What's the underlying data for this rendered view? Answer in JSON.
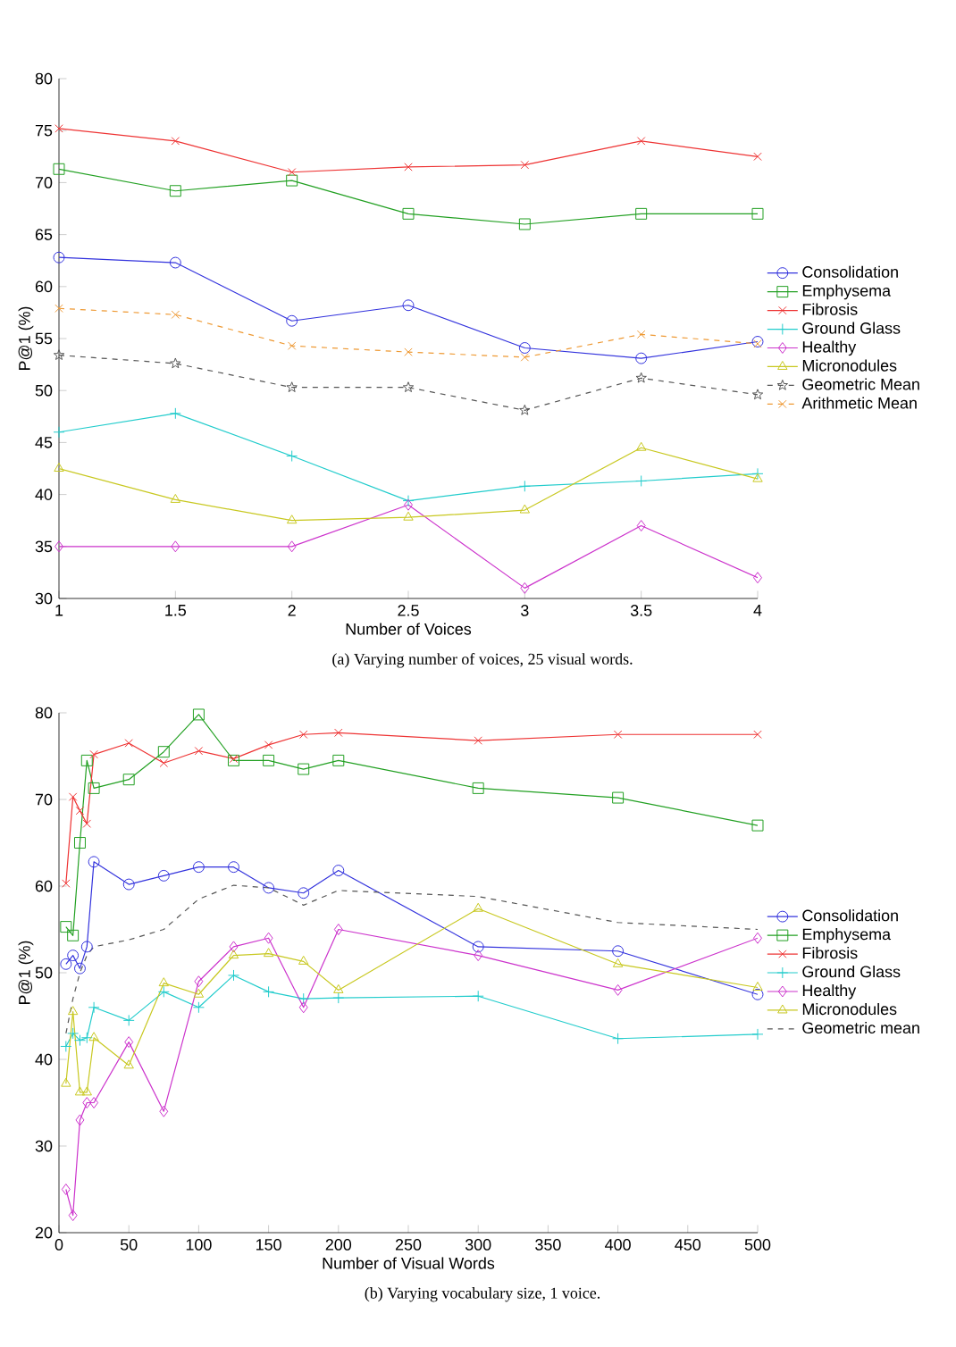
{
  "chart_data": [
    {
      "type": "line",
      "xlabel": "Number of Voices",
      "ylabel": "P@1 (%)",
      "annotations": [
        "(a) Varying number of voices, 25 visual words."
      ],
      "x": [
        1,
        1.5,
        2,
        2.5,
        3,
        3.5,
        4
      ],
      "xlim": [
        1,
        4
      ],
      "xticks": [
        1,
        1.5,
        2,
        2.5,
        3,
        3.5,
        4
      ],
      "ylim": [
        30,
        80
      ],
      "yticks": [
        30,
        35,
        40,
        45,
        50,
        55,
        60,
        65,
        70,
        75,
        80
      ],
      "grid": false,
      "legend": "right",
      "series": [
        {
          "name": "Consolidation",
          "color": "#3333dd",
          "marker": "circle",
          "line_style": "solid",
          "values": [
            62.8,
            62.3,
            56.7,
            58.2,
            54.1,
            53.1,
            54.7
          ]
        },
        {
          "name": "Emphysema",
          "color": "#22a022",
          "marker": "square",
          "line_style": "solid",
          "values": [
            71.3,
            69.2,
            70.2,
            67,
            66,
            67,
            67
          ]
        },
        {
          "name": "Fibrosis",
          "color": "#ee3333",
          "marker": "cross",
          "line_style": "solid",
          "values": [
            75.2,
            74,
            71,
            71.5,
            71.7,
            74,
            72.5
          ]
        },
        {
          "name": "Ground Glass",
          "color": "#22cccc",
          "marker": "plus",
          "line_style": "solid",
          "values": [
            46,
            47.8,
            43.7,
            39.4,
            40.8,
            41.3,
            42
          ]
        },
        {
          "name": "Healthy",
          "color": "#cc33cc",
          "marker": "diamond",
          "line_style": "solid",
          "values": [
            35,
            35,
            35,
            39,
            31,
            37,
            32
          ]
        },
        {
          "name": "Micronodules",
          "color": "#c8c820",
          "marker": "triangle",
          "line_style": "solid",
          "values": [
            42.5,
            39.5,
            37.5,
            37.8,
            38.5,
            44.5,
            41.5
          ]
        },
        {
          "name": "Geometric Mean",
          "color": "#555555",
          "marker": "star",
          "line_style": "dashed",
          "values": [
            53.4,
            52.6,
            50.3,
            50.3,
            48.1,
            51.2,
            49.6
          ]
        },
        {
          "name": "Arithmetic Mean",
          "color": "#ee9933",
          "marker": "cross",
          "line_style": "dashed",
          "values": [
            57.9,
            57.3,
            54.3,
            53.7,
            53.2,
            55.4,
            54.5
          ]
        }
      ]
    },
    {
      "type": "line",
      "xlabel": "Number of Visual Words",
      "ylabel": "P@1 (%)",
      "annotations": [
        "(b) Varying vocabulary size, 1 voice."
      ],
      "x": [
        5,
        10,
        15,
        20,
        25,
        50,
        75,
        100,
        125,
        150,
        175,
        200,
        300,
        400,
        500
      ],
      "xlim": [
        0,
        500
      ],
      "xticks": [
        0,
        50,
        100,
        150,
        200,
        250,
        300,
        350,
        400,
        450,
        500
      ],
      "ylim": [
        20,
        80
      ],
      "yticks": [
        20,
        30,
        40,
        50,
        60,
        70,
        80
      ],
      "grid": false,
      "legend": "right",
      "series": [
        {
          "name": "Consolidation",
          "color": "#3333dd",
          "marker": "circle",
          "line_style": "solid",
          "values": [
            51,
            52,
            50.5,
            53,
            62.8,
            60.2,
            61.2,
            62.2,
            62.2,
            59.8,
            59.2,
            61.8,
            53,
            52.5,
            47.5
          ]
        },
        {
          "name": "Emphysema",
          "color": "#22a022",
          "marker": "square",
          "line_style": "solid",
          "values": [
            55.3,
            54.3,
            65,
            74.5,
            71.3,
            72.3,
            75.5,
            79.8,
            74.5,
            74.5,
            73.5,
            74.5,
            71.3,
            70.2,
            67
          ]
        },
        {
          "name": "Fibrosis",
          "color": "#ee3333",
          "marker": "cross",
          "line_style": "solid",
          "values": [
            60.3,
            70.3,
            68.7,
            67.2,
            75.2,
            76.5,
            74.2,
            75.6,
            74.7,
            76.3,
            77.5,
            77.7,
            76.8,
            77.5,
            77.5
          ]
        },
        {
          "name": "Ground Glass",
          "color": "#22cccc",
          "marker": "plus",
          "line_style": "solid",
          "values": [
            41.5,
            43,
            42.2,
            42.5,
            46,
            44.5,
            47.8,
            46,
            49.7,
            47.8,
            47,
            47.1,
            47.3,
            42.4,
            42.9
          ]
        },
        {
          "name": "Healthy",
          "color": "#cc33cc",
          "marker": "diamond",
          "line_style": "solid",
          "values": [
            25,
            22,
            33,
            35,
            35,
            42,
            34,
            49,
            53,
            54,
            46,
            55,
            52,
            48,
            54
          ]
        },
        {
          "name": "Micronodules",
          "color": "#c8c820",
          "marker": "triangle",
          "line_style": "solid",
          "values": [
            37.2,
            45.5,
            36.2,
            36.2,
            42.5,
            39.3,
            48.8,
            47.5,
            52,
            52.2,
            51.3,
            48,
            57.4,
            51,
            48.3
          ]
        },
        {
          "name": "Geometric mean",
          "color": "#555555",
          "marker": "none",
          "line_style": "dashed",
          "values": [
            43,
            47,
            50,
            52,
            53,
            53.8,
            55,
            58.5,
            60.1,
            59.8,
            57.8,
            59.5,
            58.8,
            55.8,
            55
          ]
        }
      ]
    }
  ]
}
